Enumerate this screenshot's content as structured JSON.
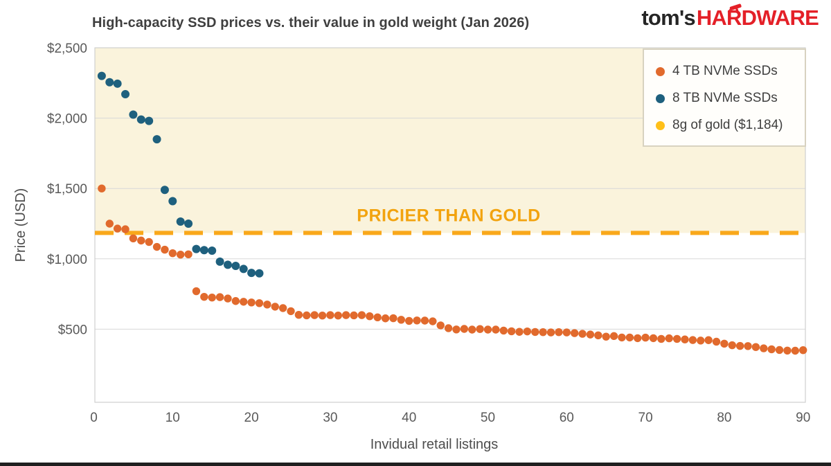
{
  "logo": {
    "prefix": "tom's",
    "suffix": "HARDWARE"
  },
  "chart_data": {
    "type": "scatter",
    "title": "High-capacity SSD prices vs. their value in gold weight (Jan 2026)",
    "xlabel": "Invidual retail listings",
    "ylabel": "Price (USD)",
    "xlim": [
      0,
      90
    ],
    "ylim": [
      0,
      2500
    ],
    "x_ticks": [
      0,
      10,
      20,
      30,
      40,
      50,
      60,
      70,
      80,
      90
    ],
    "y_ticks": [
      {
        "value": 2500,
        "label": "$2,500"
      },
      {
        "value": 2000,
        "label": "$2,000"
      },
      {
        "value": 1500,
        "label": "$1,500"
      },
      {
        "value": 1000,
        "label": "$1,000"
      },
      {
        "value": 500,
        "label": "$500"
      }
    ],
    "grid": "horizontal",
    "legend_position": "top-right",
    "annotation": "PRICIER THAN GOLD",
    "gold_line": {
      "label": "8g of gold ($1,184)",
      "value": 1184
    },
    "colors": {
      "orange_series": "#e16a2d",
      "teal_series": "#1e607e",
      "gold_line": "#f9a81b",
      "legend_gold": "#ffc019",
      "annotation": "#f2a30f",
      "region_above_gold": "#faf3dc"
    },
    "series": [
      {
        "name": "4 TB NVMe SSDs",
        "color": "#e16a2d",
        "points": [
          [
            1,
            1500
          ],
          [
            2,
            1250
          ],
          [
            3,
            1215
          ],
          [
            4,
            1210
          ],
          [
            5,
            1145
          ],
          [
            6,
            1130
          ],
          [
            7,
            1120
          ],
          [
            8,
            1085
          ],
          [
            9,
            1065
          ],
          [
            10,
            1040
          ],
          [
            11,
            1030
          ],
          [
            12,
            1032
          ],
          [
            13,
            770
          ],
          [
            14,
            730
          ],
          [
            15,
            725
          ],
          [
            16,
            728
          ],
          [
            17,
            718
          ],
          [
            18,
            700
          ],
          [
            19,
            695
          ],
          [
            20,
            690
          ],
          [
            21,
            685
          ],
          [
            22,
            675
          ],
          [
            23,
            660
          ],
          [
            24,
            650
          ],
          [
            25,
            628
          ],
          [
            26,
            602
          ],
          [
            27,
            598
          ],
          [
            28,
            600
          ],
          [
            29,
            597
          ],
          [
            30,
            600
          ],
          [
            31,
            597
          ],
          [
            32,
            600
          ],
          [
            33,
            598
          ],
          [
            34,
            600
          ],
          [
            35,
            592
          ],
          [
            36,
            584
          ],
          [
            37,
            577
          ],
          [
            38,
            578
          ],
          [
            39,
            567
          ],
          [
            40,
            559
          ],
          [
            41,
            562
          ],
          [
            42,
            561
          ],
          [
            43,
            556
          ],
          [
            44,
            527
          ],
          [
            45,
            507
          ],
          [
            46,
            498
          ],
          [
            47,
            502
          ],
          [
            48,
            497
          ],
          [
            49,
            501
          ],
          [
            50,
            497
          ],
          [
            51,
            497
          ],
          [
            52,
            490
          ],
          [
            53,
            485
          ],
          [
            54,
            481
          ],
          [
            55,
            484
          ],
          [
            56,
            480
          ],
          [
            57,
            479
          ],
          [
            58,
            477
          ],
          [
            59,
            479
          ],
          [
            60,
            477
          ],
          [
            61,
            472
          ],
          [
            62,
            467
          ],
          [
            63,
            462
          ],
          [
            64,
            456
          ],
          [
            65,
            447
          ],
          [
            66,
            451
          ],
          [
            67,
            441
          ],
          [
            68,
            441
          ],
          [
            69,
            436
          ],
          [
            70,
            440
          ],
          [
            71,
            436
          ],
          [
            72,
            431
          ],
          [
            73,
            435
          ],
          [
            74,
            431
          ],
          [
            75,
            427
          ],
          [
            76,
            423
          ],
          [
            77,
            419
          ],
          [
            78,
            422
          ],
          [
            79,
            411
          ],
          [
            80,
            397
          ],
          [
            81,
            386
          ],
          [
            82,
            381
          ],
          [
            83,
            380
          ],
          [
            84,
            373
          ],
          [
            85,
            364
          ],
          [
            86,
            357
          ],
          [
            87,
            352
          ],
          [
            88,
            348
          ],
          [
            89,
            347
          ],
          [
            90,
            351
          ]
        ]
      },
      {
        "name": "8 TB NVMe SSDs",
        "color": "#1e607e",
        "points": [
          [
            1,
            2300
          ],
          [
            2,
            2255
          ],
          [
            3,
            2245
          ],
          [
            4,
            2170
          ],
          [
            5,
            2025
          ],
          [
            6,
            1990
          ],
          [
            7,
            1980
          ],
          [
            8,
            1850
          ],
          [
            9,
            1490
          ],
          [
            10,
            1410
          ],
          [
            11,
            1265
          ],
          [
            12,
            1250
          ],
          [
            13,
            1070
          ],
          [
            14,
            1062
          ],
          [
            15,
            1058
          ],
          [
            16,
            980
          ],
          [
            17,
            958
          ],
          [
            18,
            950
          ],
          [
            19,
            928
          ],
          [
            20,
            900
          ],
          [
            21,
            897
          ]
        ]
      }
    ]
  }
}
